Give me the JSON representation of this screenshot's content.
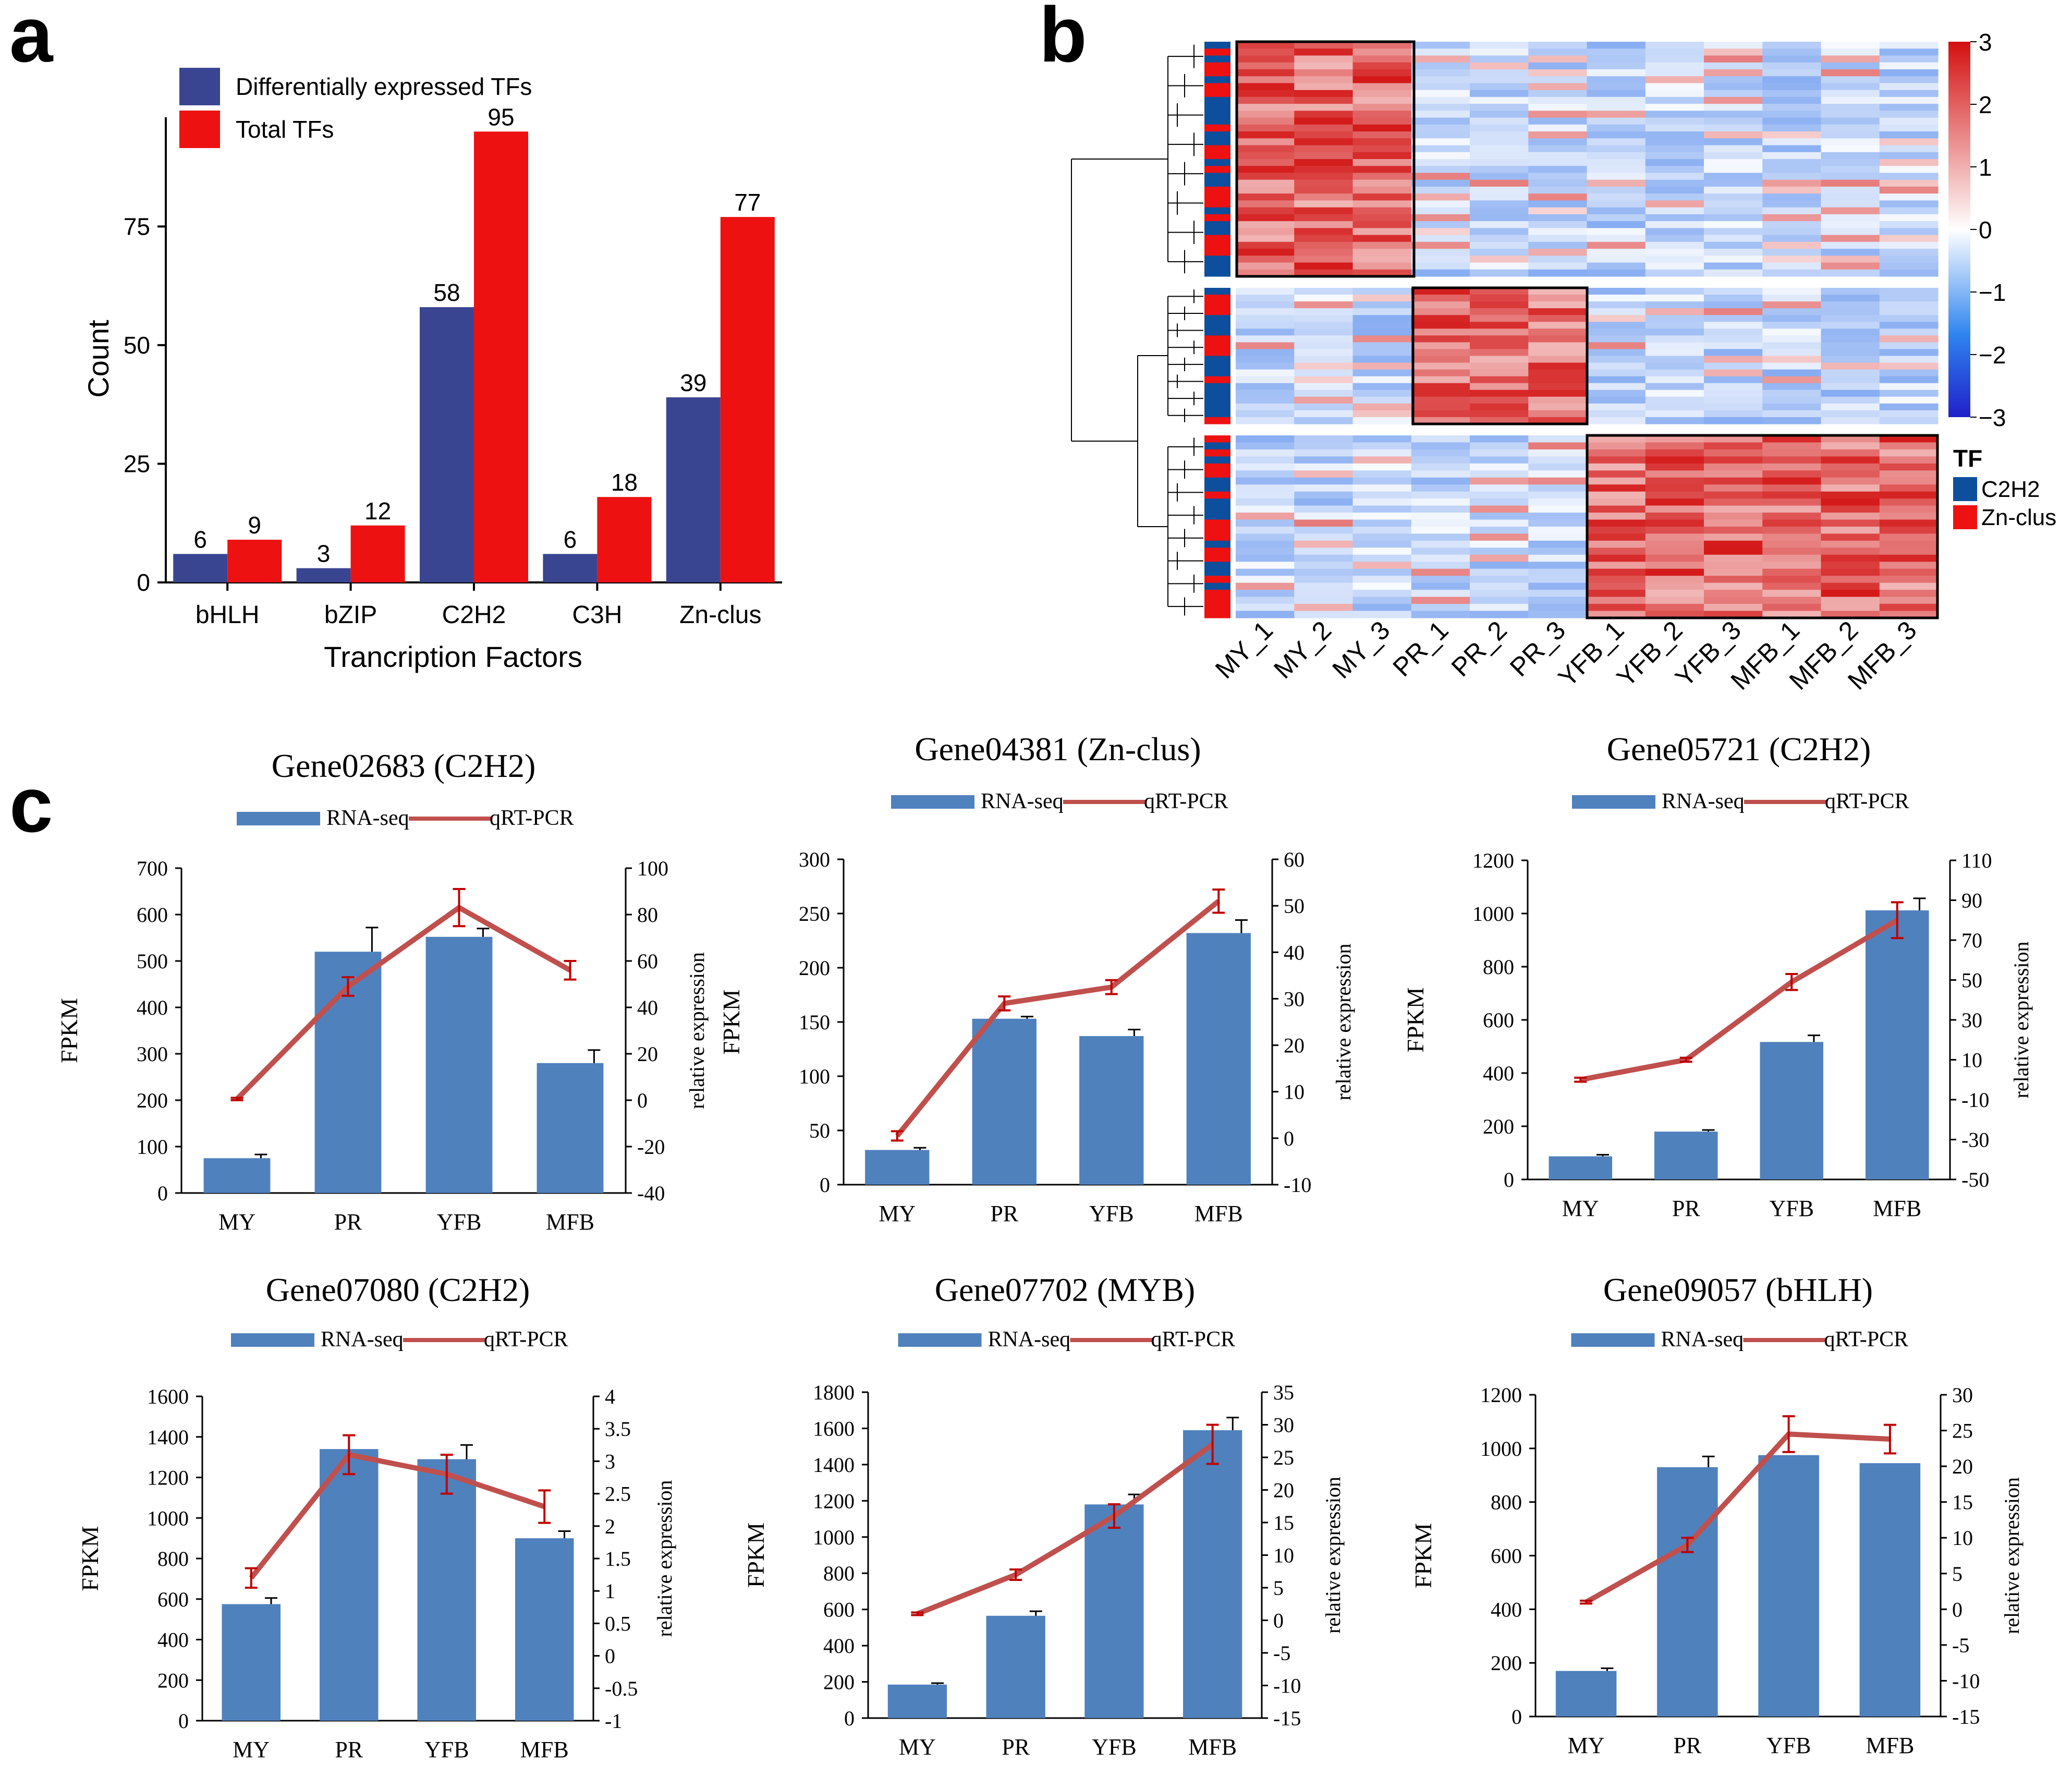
{
  "panel_labels": {
    "a": "a",
    "b": "b",
    "c": "c"
  },
  "colors": {
    "de_bar": "#3a4591",
    "total_bar": "#ee1111",
    "rna_bar": "#4f81bd",
    "qpcr_line": "#c0504d",
    "err": "#c00000",
    "heat_low": "#2020c8",
    "heat_mid": "#ffffff",
    "heat_high": "#d41010",
    "tf_c2h2": "#0d4f9c",
    "tf_zn": "#ee1111"
  },
  "chart_data": [
    {
      "type": "bar",
      "panel": "a",
      "title": "",
      "xlabel": "Trancription Factors",
      "ylabel": "Count",
      "ylim": [
        0,
        98
      ],
      "yticks": [
        0,
        25,
        50,
        75
      ],
      "categories": [
        "bHLH",
        "bZIP",
        "C2H2",
        "C3H",
        "Zn-clus"
      ],
      "series": [
        {
          "name": "Differentially expressed TFs",
          "values": [
            6,
            3,
            58,
            6,
            39
          ]
        },
        {
          "name": "Total TFs",
          "values": [
            9,
            12,
            95,
            18,
            77
          ]
        }
      ],
      "legend": "top-left"
    },
    {
      "type": "heatmap",
      "panel": "b",
      "columns": [
        "MY_1",
        "MY_2",
        "MY_3",
        "PR_1",
        "PR_2",
        "PR_3",
        "YFB_1",
        "YFB_2",
        "YFB_3",
        "MFB_1",
        "MFB_2",
        "MFB_3"
      ],
      "clusters": [
        {
          "rows": 34,
          "high_columns": [
            0,
            1,
            2
          ]
        },
        {
          "rows": 20,
          "high_columns": [
            3,
            4,
            5
          ]
        },
        {
          "rows": 26,
          "high_columns": [
            6,
            7,
            8,
            9,
            10,
            11
          ]
        }
      ],
      "scale": {
        "min": -3,
        "max": 3,
        "ticks": [
          3,
          2,
          1,
          0,
          -1,
          -2,
          -3
        ],
        "tick_labels": [
          "3",
          "2",
          "1",
          "0",
          "−1",
          "−2",
          "−3"
        ]
      },
      "legend_title": "TF",
      "legend_items": [
        {
          "label": "C2H2",
          "color": "#0d4f9c"
        },
        {
          "label": "Zn-clus",
          "color": "#ee1111"
        }
      ]
    },
    {
      "type": "bar+line",
      "panel": "c",
      "title": "Gene02683 (C2H2)",
      "categories": [
        "MY",
        "PR",
        "YFB",
        "MFB"
      ],
      "legend": [
        "RNA-seq",
        "qRT-PCR"
      ],
      "ylabel": "FPKM",
      "y2label": "relative expression",
      "ylim": [
        0,
        700
      ],
      "yticks": [
        0,
        100,
        200,
        300,
        400,
        500,
        600,
        700
      ],
      "y2lim": [
        -40,
        100
      ],
      "y2ticks": [
        -40,
        -20,
        0,
        20,
        40,
        60,
        80,
        100
      ],
      "fpkm": [
        75,
        520,
        552,
        280
      ],
      "fpkm_err": [
        8,
        52,
        18,
        28
      ],
      "rel": [
        0.5,
        49,
        83,
        56
      ],
      "rel_err": [
        0.5,
        4,
        8,
        4
      ]
    },
    {
      "type": "bar+line",
      "panel": "c",
      "title": "Gene04381 (Zn-clus)",
      "categories": [
        "MY",
        "PR",
        "YFB",
        "MFB"
      ],
      "legend": [
        "RNA-seq",
        "qRT-PCR"
      ],
      "ylabel": "FPKM",
      "y2label": "relative expression",
      "ylim": [
        0,
        300
      ],
      "yticks": [
        0,
        50,
        100,
        150,
        200,
        250,
        300
      ],
      "y2lim": [
        -10,
        60
      ],
      "y2ticks": [
        -10,
        0,
        10,
        20,
        30,
        40,
        50,
        60
      ],
      "fpkm": [
        32,
        153,
        137,
        232
      ],
      "fpkm_err": [
        2,
        2,
        6,
        12
      ],
      "rel": [
        0.5,
        29,
        32.5,
        51
      ],
      "rel_err": [
        1,
        1.5,
        1.5,
        2.5
      ]
    },
    {
      "type": "bar+line",
      "panel": "c",
      "title": "Gene05721 (C2H2)",
      "categories": [
        "MY",
        "PR",
        "YFB",
        "MFB"
      ],
      "legend": [
        "RNA-seq",
        "qRT-PCR"
      ],
      "ylabel": "FPKM",
      "y2label": "relative expression",
      "ylim": [
        0,
        1200
      ],
      "yticks": [
        0,
        200,
        400,
        600,
        800,
        1000,
        1200
      ],
      "y2lim": [
        -50,
        110
      ],
      "y2ticks": [
        -50,
        -30,
        -10,
        10,
        30,
        50,
        70,
        90,
        110
      ],
      "fpkm": [
        87,
        180,
        517,
        1012
      ],
      "fpkm_err": [
        6,
        6,
        25,
        45
      ],
      "rel": [
        0,
        10,
        49,
        80
      ],
      "rel_err": [
        1,
        1,
        4,
        9
      ]
    },
    {
      "type": "bar+line",
      "panel": "c",
      "title": "Gene07080 (C2H2)",
      "categories": [
        "MY",
        "PR",
        "YFB",
        "MFB"
      ],
      "legend": [
        "RNA-seq",
        "qRT-PCR"
      ],
      "ylabel": "FPKM",
      "y2label": "relative expression",
      "ylim": [
        0,
        1600
      ],
      "yticks": [
        0,
        200,
        400,
        600,
        800,
        1000,
        1200,
        1400,
        1600
      ],
      "y2lim": [
        -1,
        4
      ],
      "y2ticks": [
        -1,
        -0.5,
        0,
        0.5,
        1,
        1.5,
        2,
        2.5,
        3,
        3.5,
        4
      ],
      "y2tick_labels": [
        "-1",
        "-0.5",
        "0",
        "0.5",
        "1",
        "1.5",
        "2",
        "2.5",
        "3",
        "3.5",
        "4"
      ],
      "fpkm": [
        575,
        1340,
        1290,
        900
      ],
      "fpkm_err": [
        30,
        0,
        70,
        35
      ],
      "rel": [
        1.2,
        3.1,
        2.8,
        2.3
      ],
      "rel_err": [
        0.15,
        0.3,
        0.3,
        0.25
      ]
    },
    {
      "type": "bar+line",
      "panel": "c",
      "title": "Gene07702 (MYB)",
      "categories": [
        "MY",
        "PR",
        "YFB",
        "MFB"
      ],
      "legend": [
        "RNA-seq",
        "qRT-PCR"
      ],
      "ylabel": "FPKM",
      "y2label": "relative expression",
      "ylim": [
        0,
        1800
      ],
      "yticks": [
        0,
        200,
        400,
        600,
        800,
        1000,
        1200,
        1400,
        1600,
        1800
      ],
      "y2lim": [
        -15,
        35
      ],
      "y2ticks": [
        -15,
        -10,
        -5,
        0,
        5,
        10,
        15,
        20,
        25,
        30,
        35
      ],
      "fpkm": [
        185,
        565,
        1180,
        1590
      ],
      "fpkm_err": [
        8,
        25,
        55,
        70
      ],
      "rel": [
        1,
        7,
        16,
        27
      ],
      "rel_err": [
        0.2,
        0.8,
        1.8,
        3
      ]
    },
    {
      "type": "bar+line",
      "panel": "c",
      "title": "Gene09057 (bHLH)",
      "categories": [
        "MY",
        "PR",
        "YFB",
        "MFB"
      ],
      "legend": [
        "RNA-seq",
        "qRT-PCR"
      ],
      "ylabel": "FPKM",
      "y2label": "relative expression",
      "ylim": [
        0,
        1200
      ],
      "yticks": [
        0,
        200,
        400,
        600,
        800,
        1000,
        1200
      ],
      "y2lim": [
        -15,
        30
      ],
      "y2ticks": [
        -15,
        -10,
        -5,
        0,
        5,
        10,
        15,
        20,
        25,
        30
      ],
      "fpkm": [
        170,
        930,
        975,
        945
      ],
      "fpkm_err": [
        10,
        40,
        0,
        0
      ],
      "rel": [
        1,
        9,
        24.5,
        23.8
      ],
      "rel_err": [
        0.2,
        1,
        2.5,
        2
      ]
    }
  ]
}
